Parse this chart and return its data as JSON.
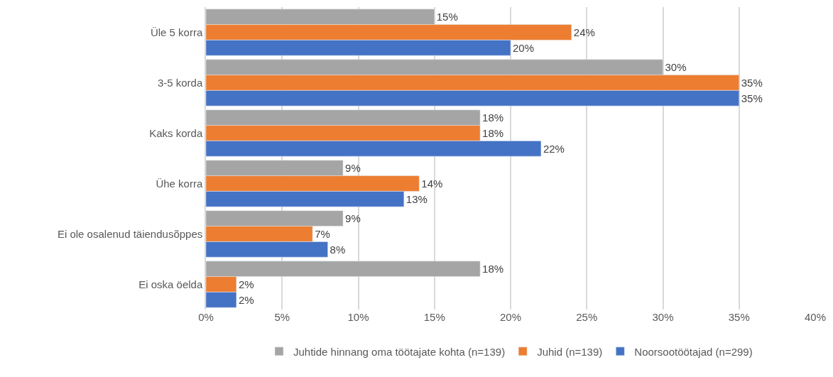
{
  "chart_data": {
    "type": "bar",
    "orientation": "horizontal",
    "categories": [
      "Üle 5 korra",
      "3-5 korda",
      "Kaks korda",
      "Ühe korra",
      "Ei ole osalenud täiendusõppes",
      "Ei oska öelda"
    ],
    "series": [
      {
        "name": "Juhtide hinnang oma töötajate kohta (n=139)",
        "color": "#a5a5a5",
        "values": [
          15,
          30,
          18,
          9,
          9,
          18
        ],
        "value_labels": [
          "15%",
          "30%",
          "18%",
          "9%",
          "9%",
          "18%"
        ]
      },
      {
        "name": "Juhid (n=139)",
        "color": "#ed7d31",
        "values": [
          24,
          35,
          18,
          14,
          7,
          2
        ],
        "value_labels": [
          "24%",
          "35%",
          "18%",
          "14%",
          "7%",
          "2%"
        ]
      },
      {
        "name": "Noorsootöötajad (n=299)",
        "color": "#4472c4",
        "values": [
          20,
          35,
          22,
          13,
          8,
          2
        ],
        "value_labels": [
          "20%",
          "35%",
          "22%",
          "13%",
          "8%",
          "2%"
        ]
      }
    ],
    "xlim": [
      0,
      40
    ],
    "xticks": [
      {
        "value": 0,
        "label": "0%"
      },
      {
        "value": 5,
        "label": "5%"
      },
      {
        "value": 10,
        "label": "10%"
      },
      {
        "value": 15,
        "label": "15%"
      },
      {
        "value": 20,
        "label": "20%"
      },
      {
        "value": 25,
        "label": "25%"
      },
      {
        "value": 30,
        "label": "30%"
      },
      {
        "value": 35,
        "label": "35%"
      },
      {
        "value": 40,
        "label": "40%"
      }
    ],
    "grid": "x",
    "legend": "bottom"
  }
}
